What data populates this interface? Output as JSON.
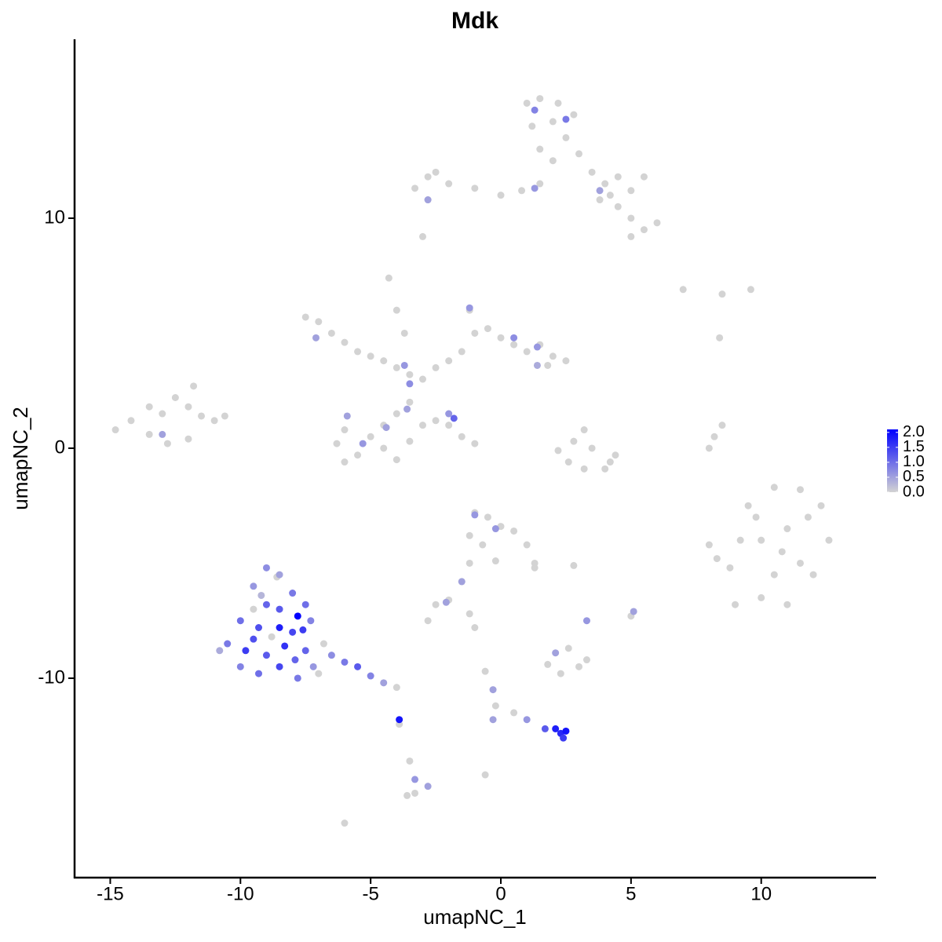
{
  "chart_data": {
    "type": "scatter",
    "title": "Mdk",
    "x_label": "umapNC_1",
    "y_label": "umapNC_2",
    "xlim": [
      -16.37,
      14.38
    ],
    "ylim": [
      -18.67,
      17.78
    ],
    "xticks": [
      -15,
      -10,
      -5,
      0,
      5,
      10
    ],
    "yticks": [
      -10,
      0,
      10
    ],
    "colorbar": {
      "low": "#d3d3d3",
      "high": "#0000ff",
      "lim": [
        0,
        2.1
      ],
      "ticks": [
        {
          "value": 0,
          "label": "0.0"
        },
        {
          "value": 0.5,
          "label": "0.5"
        },
        {
          "value": 1,
          "label": "1.0"
        },
        {
          "value": 1.5,
          "label": "1.5"
        },
        {
          "value": 2,
          "label": "2.0"
        }
      ]
    },
    "x": [
      1,
      1.5,
      2.2,
      2.8,
      1.2,
      2,
      2.5,
      1.5,
      2,
      3,
      3.5,
      4,
      4.5,
      5,
      5.5,
      3.8,
      4.5,
      5,
      5.5,
      6,
      5,
      4.2,
      1.5,
      0.8,
      0,
      -1,
      -2,
      -2.8,
      -3.3,
      -2.5,
      -2.8,
      -3,
      1.3,
      2.5,
      1.3,
      3.8,
      -2.8,
      -7.5,
      -7,
      -6.5,
      -6,
      -5.5,
      -5,
      -4.5,
      -4,
      -3.5,
      -3,
      -2.5,
      -2,
      -1.5,
      -1,
      -1.2,
      -0.5,
      0,
      0.5,
      1,
      1.5,
      2,
      2.5,
      1.8,
      -4.3,
      -4,
      -3.7,
      -3.5,
      -4,
      -4.5,
      -5,
      -6,
      -6.3,
      -5.5,
      -6,
      -4.5,
      -4,
      -3.5,
      -3,
      -2.5,
      -2,
      -1.5,
      -1,
      -7.1,
      -3.7,
      -3.5,
      -3.6,
      -1.2,
      0.5,
      1.4,
      1.4,
      -5.9,
      -5.3,
      -4.4,
      -2,
      -1.8,
      -14.8,
      -14.2,
      -13.5,
      -13,
      -12.5,
      -12,
      -11.5,
      -11,
      -12,
      -13.5,
      -11.8,
      -10.6,
      -12.8,
      -13,
      2.2,
      2.6,
      3.2,
      4,
      4.4,
      3.2,
      3.5,
      2.8,
      4.2,
      7,
      8.5,
      9.6,
      8.4,
      8.5,
      8,
      8.2,
      9,
      10,
      11,
      12,
      12.6,
      12.3,
      11.5,
      10.5,
      9.5,
      9.2,
      8.8,
      10,
      11,
      11.5,
      10.5,
      8,
      8.3,
      9.8,
      11.8,
      10.8,
      -9,
      -8.5,
      -9.5,
      -8,
      -7.5,
      -9,
      -8.5,
      -7.8,
      -10,
      -9.3,
      -8,
      -7.3,
      -10.5,
      -9.8,
      -9,
      -8.3,
      -7.5,
      -10,
      -9.3,
      -8.5,
      -7.8,
      -7.2,
      -6.5,
      -6,
      -5.5,
      -5,
      -4.5,
      -4,
      -10.8,
      -9.5,
      -8.8,
      -7,
      -6.8,
      -8.6,
      -9.2,
      -8.5,
      -9.5,
      -7.6,
      -7.9,
      -1,
      -0.5,
      0,
      0.5,
      1,
      1.3,
      -1.2,
      -0.7,
      -1.2,
      -1.5,
      -2,
      -2.5,
      -2.8,
      -0.2,
      -1,
      -0.2,
      -1.5,
      -2.1,
      1.3,
      2.8,
      -1.2,
      -1,
      1.8,
      2.3,
      3,
      2.6,
      3.3,
      2.1,
      3.3,
      5,
      5.1,
      -0.6,
      -0.3,
      -0.2,
      -0.3,
      0.5,
      1,
      1.7,
      2.3,
      2.5,
      2.4,
      2.1,
      -3.9,
      -3.9,
      -3.5,
      -3.3,
      -3.6,
      -3.3,
      -0.6,
      -6,
      -2.8
    ],
    "y": [
      15,
      15.2,
      15,
      14.5,
      14,
      14.2,
      13.5,
      13,
      12.5,
      12.8,
      12,
      11.5,
      11.8,
      11.2,
      11.8,
      10.8,
      10.5,
      10,
      9.5,
      9.8,
      9.2,
      11,
      11.5,
      11.2,
      11,
      11.3,
      11.5,
      11.8,
      11.3,
      12,
      10.8,
      9.2,
      14.7,
      14.3,
      11.3,
      11.2,
      10.8,
      5.7,
      5.5,
      5,
      4.6,
      4.2,
      4,
      3.8,
      3.5,
      3.2,
      3,
      3.5,
      3.8,
      4.2,
      5,
      6,
      5.2,
      4.8,
      4.5,
      4.2,
      4.5,
      4,
      3.8,
      3.6,
      7.4,
      6,
      5,
      2,
      1.5,
      1,
      0.5,
      0.8,
      0.2,
      -0.3,
      -0.6,
      0,
      -0.5,
      0.3,
      1,
      1.2,
      1,
      0.5,
      0.2,
      4.8,
      3.6,
      2.8,
      1.7,
      6.1,
      4.8,
      4.4,
      3.6,
      1.4,
      0.2,
      0.9,
      1.5,
      1.3,
      0.8,
      1.2,
      0.6,
      1.5,
      2.2,
      1.8,
      1.4,
      1.2,
      0.4,
      1.8,
      2.7,
      1.4,
      0.2,
      0.6,
      -0.1,
      -0.6,
      -0.9,
      -0.9,
      -0.3,
      0.8,
      0,
      0.3,
      -0.6,
      6.9,
      6.7,
      6.9,
      4.8,
      1,
      0,
      0.5,
      -6.8,
      -6.5,
      -6.8,
      -5.5,
      -4,
      -2.5,
      -1.8,
      -1.7,
      -2.5,
      -4,
      -5.2,
      -4,
      -3.5,
      -5,
      -5.5,
      -4.2,
      -4.8,
      -3,
      -3,
      -4.5,
      -5.2,
      -5.5,
      -6,
      -6.3,
      -6.8,
      -6.8,
      -7,
      -7.3,
      -7.5,
      -7.8,
      -8,
      -7.5,
      -8.5,
      -8.8,
      -9,
      -8.6,
      -8.8,
      -9.5,
      -9.8,
      -9.5,
      -10,
      -9.5,
      -9,
      -9.3,
      -9.5,
      -9.9,
      -10.2,
      -10.4,
      -8.8,
      -7,
      -8.2,
      -9.8,
      -8.5,
      -5.6,
      -6.4,
      -7.8,
      -8.3,
      -7.9,
      -9.2,
      -2.8,
      -3,
      -3.4,
      -3.6,
      -4.2,
      -5.2,
      -3.8,
      -4.2,
      -5,
      -5.8,
      -6.6,
      -6.8,
      -7.5,
      -4.9,
      -2.9,
      -3.5,
      -5.8,
      -6.7,
      -5,
      -5.1,
      -7.2,
      -7.8,
      -9.4,
      -9.8,
      -9.5,
      -8.7,
      -9.2,
      -8.9,
      -7.5,
      -7.3,
      -7.1,
      -9.7,
      -10.5,
      -11.2,
      -11.8,
      -11.5,
      -11.8,
      -12.2,
      -12.4,
      -12.3,
      -12.6,
      -12.2,
      -11.8,
      -12,
      -13.6,
      -14.4,
      -15.1,
      -15,
      -14.2,
      -16.3,
      -14.7
    ],
    "values": [
      0,
      0,
      0,
      0,
      0,
      0,
      0,
      0,
      0,
      0,
      0,
      0,
      0,
      0,
      0,
      0,
      0,
      0,
      0,
      0,
      0,
      0,
      0,
      0,
      0,
      0,
      0,
      0,
      0,
      0,
      0,
      0,
      0.8,
      0.9,
      0.6,
      0.5,
      0.5,
      0,
      0,
      0,
      0,
      0,
      0,
      0,
      0,
      0,
      0,
      0,
      0,
      0,
      0,
      0,
      0,
      0,
      0,
      0,
      0,
      0,
      0,
      0,
      0,
      0,
      0,
      0,
      0,
      0,
      0,
      0,
      0,
      0,
      0,
      0,
      0,
      0,
      0,
      0,
      0,
      0,
      0,
      0.5,
      0.6,
      0.7,
      0.5,
      0.6,
      0.7,
      0.6,
      0.4,
      0.5,
      0.6,
      0.5,
      0.6,
      1.1,
      0,
      0,
      0,
      0,
      0,
      0,
      0,
      0,
      0,
      0,
      0,
      0,
      0,
      0.5,
      0,
      0,
      0,
      0,
      0,
      0,
      0,
      0,
      0,
      0,
      0,
      0,
      0,
      0,
      0,
      0,
      0,
      0,
      0,
      0,
      0,
      0,
      0,
      0,
      0,
      0,
      0,
      0,
      0,
      0,
      0,
      0,
      0,
      0,
      0,
      0,
      0.7,
      0.5,
      0.6,
      0.9,
      1,
      1.1,
      1.2,
      2.1,
      1,
      1.3,
      1.4,
      0.8,
      0.9,
      1.5,
      1.2,
      1.6,
      1.1,
      0.8,
      1,
      1.4,
      0.9,
      0.6,
      0.7,
      0.9,
      1.2,
      0.8,
      0.5,
      0,
      0.4,
      0,
      0,
      0,
      0,
      0,
      0.3,
      1.8,
      1.3,
      1.5,
      1.1,
      0,
      0,
      0,
      0,
      0,
      0,
      0,
      0,
      0,
      0,
      0,
      0,
      0,
      0,
      0.6,
      0.6,
      0.5,
      0.5,
      0,
      0,
      0,
      0,
      0,
      0,
      0,
      0,
      0,
      0.5,
      0.6,
      0,
      0.5,
      0,
      0.5,
      0,
      0.5,
      0,
      0.6,
      1.2,
      1.7,
      1.9,
      1.5,
      1.8,
      1.9,
      0,
      0,
      0.6,
      0,
      0,
      0,
      0,
      0.5
    ]
  }
}
